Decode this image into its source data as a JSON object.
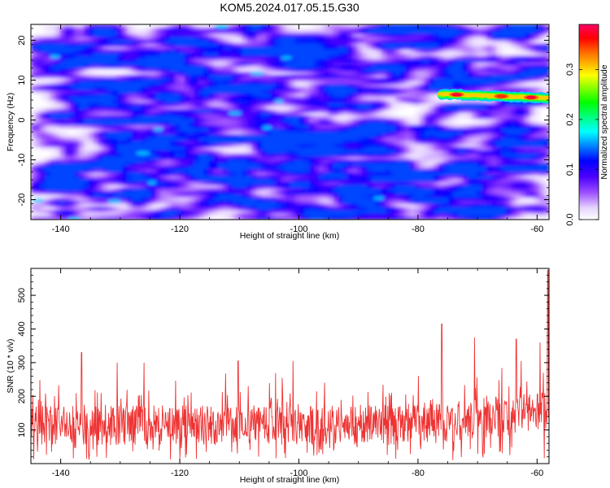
{
  "title": "KOM5.2024.017.05.15.G30",
  "chart_data": [
    {
      "type": "heatmap",
      "xlabel": "Height of straight line (km)",
      "ylabel": "Frequency (Hz)",
      "xlim": [
        -145,
        -58
      ],
      "ylim": [
        -25,
        24
      ],
      "xticks": [
        -140,
        -120,
        -100,
        -80,
        -60
      ],
      "yticks": [
        -20,
        -10,
        0,
        10,
        20
      ],
      "xtick_labels": [
        "-140",
        "-120",
        "-100",
        "-80",
        "-60"
      ],
      "ytick_labels": [
        "-20",
        "-10",
        "0",
        "10",
        "20"
      ],
      "colorbar": {
        "label": "Normalized spectral amplitude",
        "range": [
          0.0,
          0.39
        ],
        "ticks": [
          0.0,
          0.1,
          0.2,
          0.3
        ],
        "tick_labels": [
          "0.0",
          "0.1",
          "0.2",
          "0.3"
        ],
        "colormap": [
          "#ffffff",
          "#e6d4ff",
          "#8a2be2",
          "#6a00ff",
          "#0000ff",
          "#00ffff",
          "#00ff00",
          "#ffff00",
          "#ff0000",
          "#ff0066"
        ]
      },
      "strong_signal": {
        "x_start": -76,
        "x_end": -58,
        "frequency_start": 6.5,
        "frequency_end": 5.5,
        "peak_value": 0.37
      }
    },
    {
      "type": "line",
      "xlabel": "Height of straight line (km)",
      "ylabel": "SNR (10 * v/v)",
      "xlim": [
        -145,
        -58
      ],
      "ylim": [
        0,
        580
      ],
      "xticks": [
        -140,
        -120,
        -100,
        -80,
        -60
      ],
      "yticks": [
        100,
        200,
        300,
        400,
        500
      ],
      "xtick_labels": [
        "-140",
        "-120",
        "-100",
        "-80",
        "-60"
      ],
      "ytick_labels": [
        "100",
        "200",
        "300",
        "400",
        "500"
      ],
      "line_color": "#ee3333",
      "baseline_mean": 115,
      "noise_amplitude": 60,
      "spikes": [
        {
          "x": -136.5,
          "y": 330
        },
        {
          "x": -130.5,
          "y": 300
        },
        {
          "x": -126.0,
          "y": 300
        },
        {
          "x": -110.2,
          "y": 305
        },
        {
          "x": -101.0,
          "y": 305
        },
        {
          "x": -76.0,
          "y": 415
        },
        {
          "x": -70.5,
          "y": 375
        },
        {
          "x": -63.5,
          "y": 370
        },
        {
          "x": -59.5,
          "y": 360
        },
        {
          "x": -58.2,
          "y": 575
        }
      ]
    }
  ]
}
